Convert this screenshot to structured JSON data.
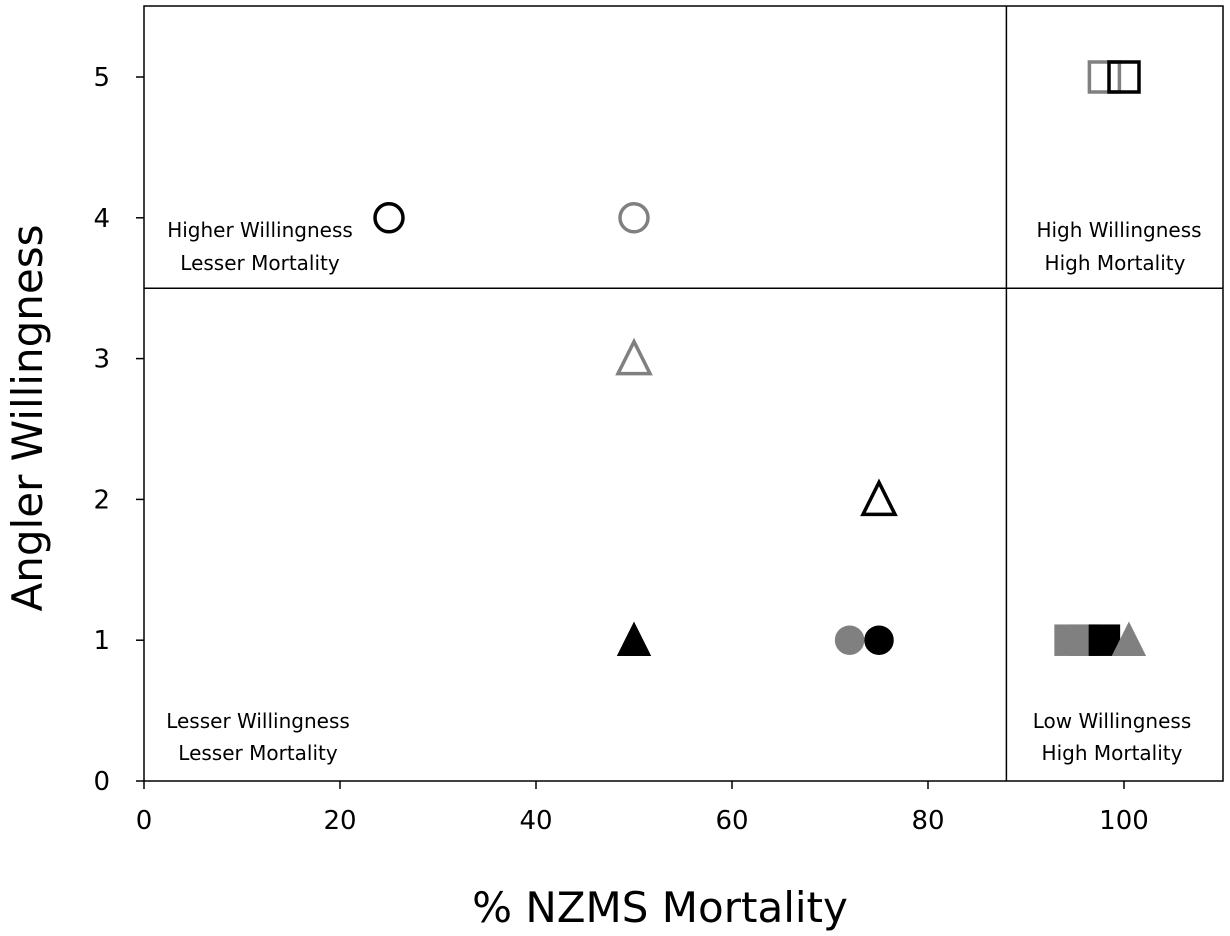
{
  "chart_data": {
    "type": "scatter",
    "xlabel": "% NZMS Mortality",
    "ylabel": "Angler Willingness",
    "xlim": [
      0,
      110
    ],
    "ylim": [
      0,
      5.5
    ],
    "x_ticks": [
      0,
      20,
      40,
      60,
      80,
      100
    ],
    "y_ticks": [
      0,
      1,
      2,
      3,
      4,
      5
    ],
    "grid": false,
    "divider_x": 88,
    "divider_y": 3.5,
    "quadrant_labels": {
      "top_left": [
        "Higher Willingness",
        "Lesser Mortality"
      ],
      "top_right": [
        "High Willingness",
        "High Mortality"
      ],
      "bottom_left": [
        "Lesser Willingness",
        "Lesser Mortality"
      ],
      "bottom_right": [
        "Low Willingness",
        "High Mortality"
      ]
    },
    "points": [
      {
        "x": 25,
        "y": 4,
        "marker": "circle",
        "fill": "open",
        "color": "#000000"
      },
      {
        "x": 50,
        "y": 4,
        "marker": "circle",
        "fill": "open",
        "color": "#808080"
      },
      {
        "x": 50,
        "y": 3,
        "marker": "triangle",
        "fill": "open",
        "color": "#808080"
      },
      {
        "x": 75,
        "y": 2,
        "marker": "triangle",
        "fill": "open",
        "color": "#000000"
      },
      {
        "x": 50,
        "y": 1,
        "marker": "triangle",
        "fill": "filled",
        "color": "#000000"
      },
      {
        "x": 72,
        "y": 1,
        "marker": "circle",
        "fill": "filled",
        "color": "#808080"
      },
      {
        "x": 75,
        "y": 1,
        "marker": "circle",
        "fill": "filled",
        "color": "#000000"
      },
      {
        "x": 98,
        "y": 5,
        "marker": "square",
        "fill": "open",
        "color": "#808080"
      },
      {
        "x": 100,
        "y": 5,
        "marker": "square",
        "fill": "open",
        "color": "#000000"
      },
      {
        "x": 94.5,
        "y": 1,
        "marker": "square",
        "fill": "filled",
        "color": "#808080"
      },
      {
        "x": 96,
        "y": 1,
        "marker": "square",
        "fill": "filled",
        "color": "#808080"
      },
      {
        "x": 98,
        "y": 1,
        "marker": "square",
        "fill": "filled",
        "color": "#000000"
      },
      {
        "x": 100.5,
        "y": 1,
        "marker": "triangle",
        "fill": "filled",
        "color": "#808080"
      }
    ]
  }
}
